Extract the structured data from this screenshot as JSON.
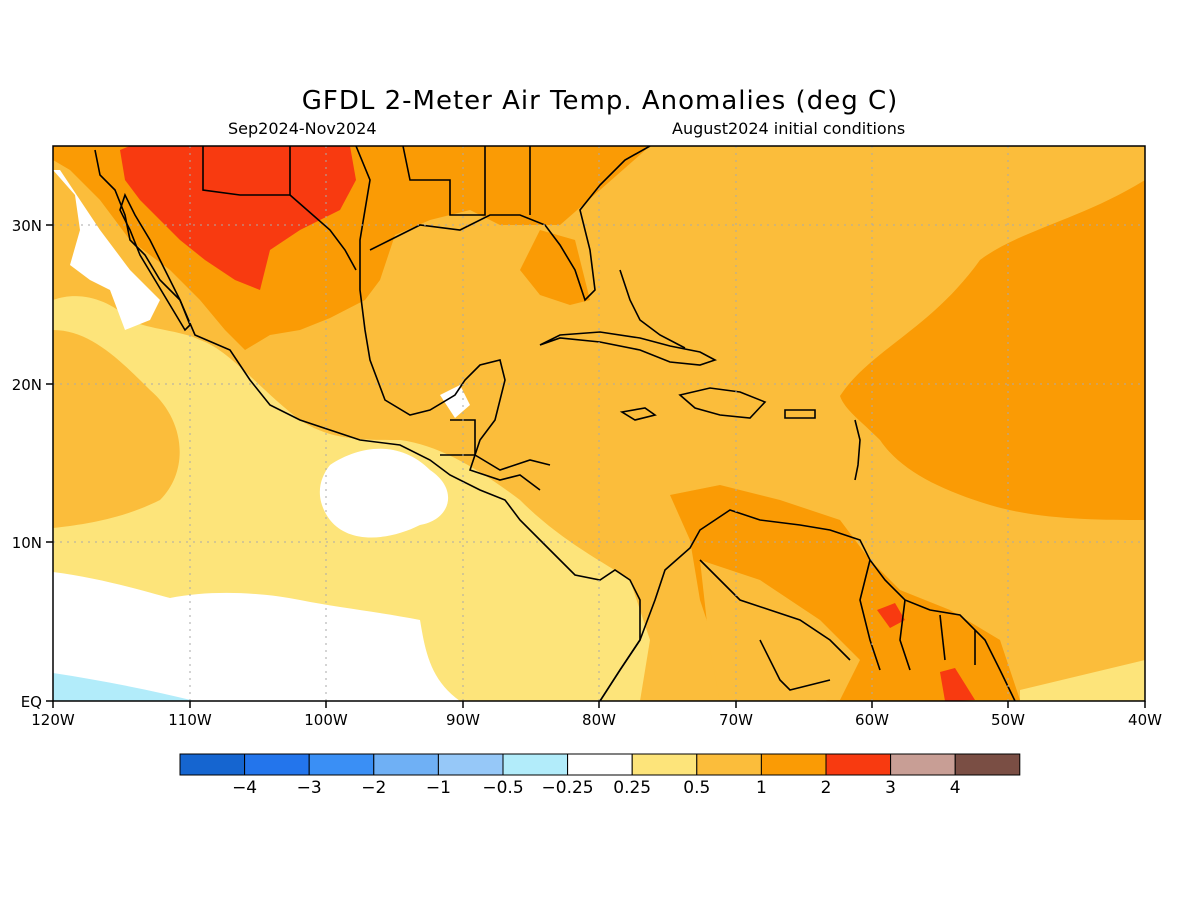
{
  "header": {
    "title": "GFDL 2-Meter Air Temp. Anomalies (deg C)",
    "period": "Sep2024-Nov2024",
    "init": "August2024 initial conditions"
  },
  "axes": {
    "lon_ticks": [
      "120W",
      "110W",
      "100W",
      "90W",
      "80W",
      "70W",
      "60W",
      "50W",
      "40W"
    ],
    "lat_ticks": [
      "EQ",
      "10N",
      "20N",
      "30N"
    ]
  },
  "colorbar": {
    "colors": [
      "#1565d0",
      "#2375ec",
      "#3a8ff5",
      "#6fb0f5",
      "#96c8f8",
      "#b2ecfa",
      "#ffffff",
      "#fde47a",
      "#fbbd3b",
      "#fa9b05",
      "#f83a10",
      "#c89e95",
      "#7a4e44"
    ],
    "labels": [
      "-4",
      "-3",
      "-2",
      "-1",
      "-0.5",
      "-0.25",
      "0.25",
      "0.5",
      "1",
      "2",
      "3",
      "4"
    ]
  },
  "legend_colors": {
    "white": "#ffffff",
    "light_yellow": "#fde47a",
    "yellow_orange": "#fbbd3b",
    "orange": "#fa9b05",
    "red": "#f83a10",
    "light_blue": "#b2ecfa"
  }
}
